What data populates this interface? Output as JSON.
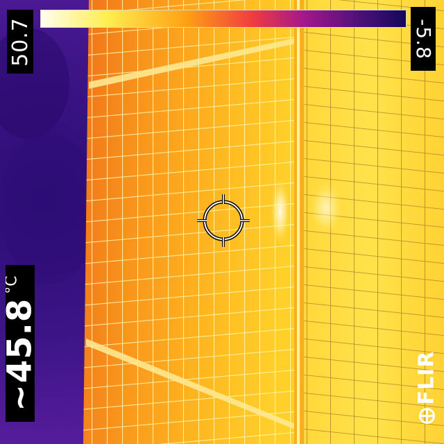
{
  "palette": {
    "name": "iron",
    "stops": [
      "#fffef0",
      "#ffee50",
      "#ffa014",
      "#f03c40",
      "#a4188a",
      "#4a1078",
      "#14085a"
    ]
  },
  "scale": {
    "max": "50.7",
    "min": "-5.8"
  },
  "spot": {
    "prefix": "~",
    "value": "45.8",
    "unit": "°C"
  },
  "brand": {
    "logo_text": "FLIR"
  },
  "colors": {
    "sky": "#3c1486",
    "panel_hot": "#ffc823",
    "panel_warm": "#f58c18",
    "grid_line": "#fff8b0",
    "hud_bg": "#000000",
    "hud_text": "#ffffff"
  },
  "icons": {
    "crosshair": "spotmeter-crosshair-icon",
    "logo": "flir-logo-icon"
  }
}
